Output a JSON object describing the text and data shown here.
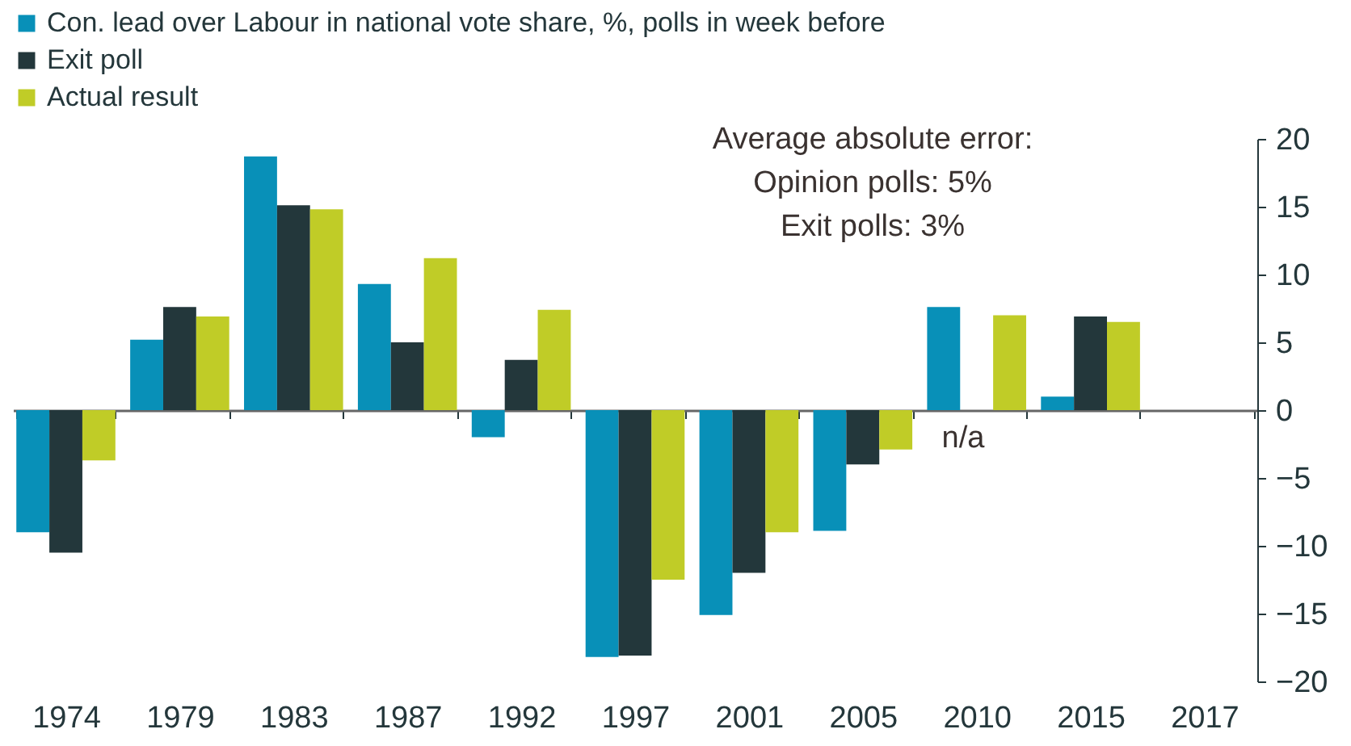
{
  "chart_data": {
    "type": "bar",
    "categories": [
      "1974",
      "1979",
      "1983",
      "1987",
      "1992",
      "1997",
      "2001",
      "2005",
      "2010",
      "2015",
      "2017"
    ],
    "series": [
      {
        "name": "Con. lead over Labour in national vote share, %, polls in week before",
        "color": "#0890b8",
        "values": [
          -9.0,
          5.2,
          18.7,
          9.3,
          -2.0,
          -18.2,
          -15.1,
          -8.9,
          7.6,
          1.0,
          null
        ]
      },
      {
        "name": "Exit poll",
        "color": "#23373b",
        "values": [
          -10.5,
          7.6,
          15.1,
          5.0,
          3.7,
          -18.1,
          -12.0,
          -4.0,
          null,
          6.9,
          null
        ]
      },
      {
        "name": "Actual result",
        "color": "#c0cc27",
        "values": [
          -3.7,
          6.9,
          14.8,
          11.2,
          7.4,
          -12.5,
          -9.0,
          -2.9,
          7.0,
          6.5,
          null
        ]
      }
    ],
    "ylim": [
      -20,
      20
    ],
    "yticks": [
      -20,
      -15,
      -10,
      -5,
      0,
      5,
      10,
      15,
      20
    ],
    "legend": "top left",
    "annotations": [
      "Average absolute error:",
      "Opinion polls: 5%",
      "Exit polls: 3%",
      "n/a"
    ]
  }
}
